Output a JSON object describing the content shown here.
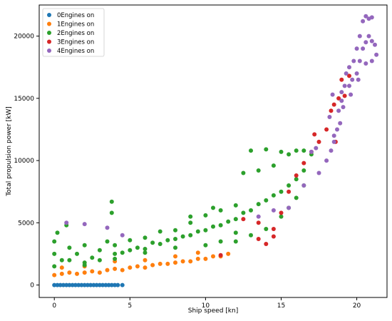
{
  "chart_data": {
    "type": "scatter",
    "title": "",
    "xlabel": "Ship speed [kn]",
    "ylabel": "Total propulsion power [kW]",
    "xlim": [
      -1,
      22
    ],
    "ylim": [
      -1000,
      22500
    ],
    "x_ticks": [
      0,
      5,
      10,
      15,
      20
    ],
    "y_ticks": [
      0,
      5000,
      10000,
      15000,
      20000
    ],
    "grid": false,
    "legend_position": "top-left",
    "series": [
      {
        "name": "0Engines on",
        "color": "#1f77b4",
        "points": [
          [
            0.0,
            0
          ],
          [
            0.2,
            0
          ],
          [
            0.4,
            0
          ],
          [
            0.6,
            0
          ],
          [
            0.8,
            0
          ],
          [
            1.0,
            0
          ],
          [
            1.2,
            0
          ],
          [
            1.4,
            0
          ],
          [
            1.6,
            0
          ],
          [
            1.8,
            0
          ],
          [
            2.0,
            0
          ],
          [
            2.2,
            0
          ],
          [
            2.4,
            0
          ],
          [
            2.6,
            0
          ],
          [
            2.8,
            0
          ],
          [
            3.0,
            0
          ],
          [
            3.2,
            0
          ],
          [
            3.4,
            0
          ],
          [
            3.6,
            0
          ],
          [
            3.8,
            0
          ],
          [
            4.0,
            0
          ],
          [
            4.2,
            0
          ],
          [
            4.5,
            0
          ]
        ]
      },
      {
        "name": "1Engines on",
        "color": "#ff7f0e",
        "points": [
          [
            0.0,
            800
          ],
          [
            0.5,
            900
          ],
          [
            1.0,
            1000
          ],
          [
            1.5,
            900
          ],
          [
            2.0,
            1000
          ],
          [
            2.5,
            1100
          ],
          [
            3.0,
            1000
          ],
          [
            3.5,
            1200
          ],
          [
            4.0,
            1300
          ],
          [
            4.5,
            1200
          ],
          [
            5.0,
            1400
          ],
          [
            5.5,
            1500
          ],
          [
            6.0,
            1400
          ],
          [
            6.5,
            1600
          ],
          [
            7.0,
            1700
          ],
          [
            7.5,
            1700
          ],
          [
            8.0,
            1800
          ],
          [
            8.5,
            1900
          ],
          [
            9.0,
            1900
          ],
          [
            9.5,
            2100
          ],
          [
            10.0,
            2100
          ],
          [
            10.5,
            2300
          ],
          [
            11.0,
            2300
          ],
          [
            11.5,
            2500
          ],
          [
            0.5,
            1400
          ],
          [
            2.0,
            1500
          ],
          [
            4.0,
            1900
          ],
          [
            6.0,
            2000
          ],
          [
            8.0,
            2300
          ],
          [
            9.5,
            2600
          ]
        ]
      },
      {
        "name": "2Engines on",
        "color": "#2ca02c",
        "points": [
          [
            0.0,
            1500
          ],
          [
            0.0,
            2500
          ],
          [
            0.0,
            3500
          ],
          [
            0.2,
            4200
          ],
          [
            0.5,
            2000
          ],
          [
            1.0,
            3000
          ],
          [
            1.0,
            2000
          ],
          [
            1.5,
            2500
          ],
          [
            2.0,
            1800
          ],
          [
            2.0,
            3200
          ],
          [
            2.5,
            2200
          ],
          [
            3.0,
            2000
          ],
          [
            3.0,
            2800
          ],
          [
            3.5,
            3500
          ],
          [
            3.8,
            5800
          ],
          [
            3.8,
            6700
          ],
          [
            4.0,
            2500
          ],
          [
            4.0,
            3200
          ],
          [
            4.5,
            2600
          ],
          [
            5.0,
            2800
          ],
          [
            5.0,
            3600
          ],
          [
            5.5,
            3000
          ],
          [
            6.0,
            2900
          ],
          [
            6.0,
            3800
          ],
          [
            6.5,
            3400
          ],
          [
            7.0,
            3300
          ],
          [
            7.0,
            4300
          ],
          [
            7.5,
            3600
          ],
          [
            8.0,
            3700
          ],
          [
            8.0,
            4400
          ],
          [
            8.5,
            3900
          ],
          [
            9.0,
            4000
          ],
          [
            9.0,
            5000
          ],
          [
            9.5,
            4300
          ],
          [
            10.0,
            4400
          ],
          [
            10.0,
            5600
          ],
          [
            10.5,
            4700
          ],
          [
            11.0,
            4800
          ],
          [
            11.0,
            6000
          ],
          [
            11.5,
            5100
          ],
          [
            12.0,
            5300
          ],
          [
            12.0,
            6400
          ],
          [
            12.5,
            5800
          ],
          [
            12.5,
            9000
          ],
          [
            13.0,
            6000
          ],
          [
            13.0,
            10800
          ],
          [
            13.5,
            6500
          ],
          [
            13.5,
            9200
          ],
          [
            14.0,
            6800
          ],
          [
            14.0,
            10900
          ],
          [
            14.5,
            7200
          ],
          [
            14.5,
            9600
          ],
          [
            15.0,
            7500
          ],
          [
            15.0,
            10700
          ],
          [
            15.5,
            8000
          ],
          [
            15.5,
            10500
          ],
          [
            16.0,
            8500
          ],
          [
            16.0,
            10800
          ],
          [
            16.5,
            9200
          ],
          [
            16.5,
            10800
          ],
          [
            17.0,
            10500
          ],
          [
            12.0,
            3500
          ],
          [
            13.0,
            4000
          ],
          [
            14.0,
            4500
          ],
          [
            15.0,
            5500
          ],
          [
            15.5,
            6200
          ],
          [
            16.0,
            7000
          ],
          [
            16.5,
            8000
          ],
          [
            10.0,
            3200
          ],
          [
            11.0,
            3500
          ],
          [
            12.0,
            4200
          ],
          [
            8.0,
            3000
          ],
          [
            6.0,
            2600
          ],
          [
            4.0,
            2100
          ],
          [
            2.0,
            1600
          ],
          [
            0.8,
            4800
          ],
          [
            9.0,
            5500
          ],
          [
            10.5,
            6200
          ]
        ]
      },
      {
        "name": "3Engines on",
        "color": "#d62728",
        "points": [
          [
            12.5,
            5300
          ],
          [
            13.5,
            3700
          ],
          [
            14.0,
            3300
          ],
          [
            14.5,
            4500
          ],
          [
            15.0,
            5800
          ],
          [
            15.5,
            7500
          ],
          [
            16.0,
            8800
          ],
          [
            16.5,
            9800
          ],
          [
            17.0,
            10700
          ],
          [
            17.5,
            11500
          ],
          [
            17.2,
            12100
          ],
          [
            18.0,
            12500
          ],
          [
            18.3,
            14000
          ],
          [
            18.5,
            14500
          ],
          [
            18.8,
            15000
          ],
          [
            19.2,
            15200
          ],
          [
            18.6,
            11500
          ],
          [
            19.0,
            16500
          ],
          [
            19.5,
            16800
          ],
          [
            11.0,
            2400
          ],
          [
            13.5,
            5000
          ],
          [
            14.5,
            3900
          ]
        ]
      },
      {
        "name": "4Engines on",
        "color": "#9467bd",
        "points": [
          [
            0.8,
            5000
          ],
          [
            2.0,
            4900
          ],
          [
            3.5,
            4600
          ],
          [
            4.5,
            4000
          ],
          [
            17.5,
            9000
          ],
          [
            18.0,
            10000
          ],
          [
            18.3,
            10800
          ],
          [
            18.5,
            11500
          ],
          [
            18.7,
            12500
          ],
          [
            18.8,
            14000
          ],
          [
            19.0,
            14800
          ],
          [
            19.0,
            15500
          ],
          [
            19.2,
            16000
          ],
          [
            19.3,
            17000
          ],
          [
            19.5,
            16000
          ],
          [
            19.5,
            17500
          ],
          [
            19.7,
            16500
          ],
          [
            19.8,
            18000
          ],
          [
            20.0,
            17000
          ],
          [
            20.0,
            19000
          ],
          [
            20.2,
            18000
          ],
          [
            20.2,
            20000
          ],
          [
            20.4,
            19000
          ],
          [
            20.4,
            21200
          ],
          [
            20.6,
            19500
          ],
          [
            20.6,
            21600
          ],
          [
            20.8,
            20000
          ],
          [
            20.8,
            21400
          ],
          [
            21.0,
            19600
          ],
          [
            21.0,
            21500
          ],
          [
            21.2,
            19300
          ],
          [
            21.3,
            18500
          ],
          [
            18.5,
            12000
          ],
          [
            18.9,
            13000
          ],
          [
            19.1,
            14300
          ],
          [
            19.6,
            15300
          ],
          [
            20.1,
            16500
          ],
          [
            20.6,
            17800
          ],
          [
            21.0,
            18000
          ],
          [
            17.0,
            10700
          ],
          [
            17.3,
            11000
          ],
          [
            15.5,
            6200
          ],
          [
            16.5,
            8000
          ],
          [
            13.5,
            5500
          ],
          [
            14.5,
            6000
          ],
          [
            18.2,
            13500
          ],
          [
            18.4,
            15300
          ]
        ]
      }
    ]
  }
}
